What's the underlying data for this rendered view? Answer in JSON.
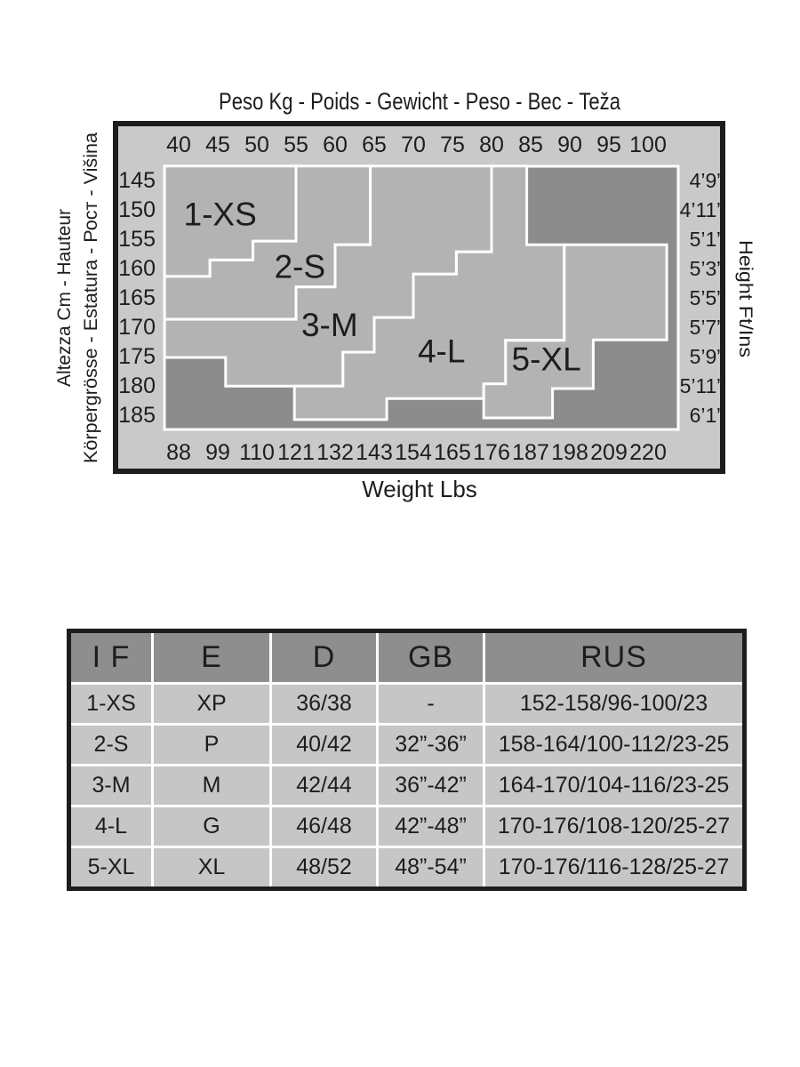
{
  "colors": {
    "band": "#c9c9c9",
    "region_fill": "#b3b3b3",
    "dark_fill": "#8c8c8c",
    "separator_line": "#ffffff",
    "ink": "#1d1d1d",
    "table_header_bg": "#8e8e8e",
    "table_row_bg": "#c6c6c6"
  },
  "chart": {
    "title": "Peso Kg - Poids - Gewicht - Peso - Вес - Teža",
    "left_axis_label_line1": "Altezza Cm - Hauteur",
    "left_axis_label_line2": "Körpergrösse - Estatura - Рост - Višina",
    "right_axis_label": "Height Ft/Ins",
    "bottom_axis_label": "Weight Lbs"
  },
  "chart_data": {
    "type": "area",
    "title": "Peso Kg - Poids - Gewicht - Peso - Вес - Teža",
    "x_axis": {
      "label": "Weight",
      "kg_ticks": [
        40,
        45,
        50,
        55,
        60,
        65,
        70,
        75,
        80,
        85,
        90,
        95,
        100
      ],
      "lbs_ticks": [
        88,
        99,
        110,
        121,
        132,
        143,
        154,
        165,
        176,
        187,
        198,
        209,
        220
      ],
      "kg_range_shown": [
        38.2,
        103.9
      ]
    },
    "y_axis": {
      "label": "Height",
      "cm_ticks": [
        145,
        150,
        155,
        160,
        165,
        170,
        175,
        180,
        185
      ],
      "ftin_ticks": [
        "4’9”",
        "4’11”",
        "5’1”",
        "5’3”",
        "5’5”",
        "5’7”",
        "5’9”",
        "5’11”",
        "6’1”"
      ],
      "cm_range_shown": [
        142.7,
        187.6
      ]
    },
    "legend_note": "Stepped light-grey polygons are size zones; darker grey background means outside size range",
    "regions": [
      {
        "size": "1-XS",
        "label_at": [
          45.3,
          150.8
        ],
        "polygon_kg_cm": [
          [
            38.2,
            142.7
          ],
          [
            55,
            142.7
          ],
          [
            55,
            155.5
          ],
          [
            49.5,
            155.5
          ],
          [
            49.5,
            158.7
          ],
          [
            44,
            158.7
          ],
          [
            44,
            161.5
          ],
          [
            38.2,
            161.5
          ]
        ]
      },
      {
        "size": "2-S",
        "label_at": [
          55.5,
          159.8
        ],
        "polygon_kg_cm": [
          [
            55,
            142.7
          ],
          [
            64.5,
            142.7
          ],
          [
            64.5,
            156.1
          ],
          [
            60,
            156.1
          ],
          [
            60,
            163.3
          ],
          [
            55,
            163.3
          ],
          [
            55,
            168.8
          ],
          [
            38.2,
            168.8
          ],
          [
            38.2,
            161.5
          ],
          [
            44,
            161.5
          ],
          [
            44,
            158.7
          ],
          [
            49.5,
            158.7
          ],
          [
            49.5,
            155.5
          ],
          [
            55,
            155.5
          ]
        ]
      },
      {
        "size": "3-M",
        "label_at": [
          59.3,
          169.7
        ],
        "polygon_kg_cm": [
          [
            64.5,
            142.7
          ],
          [
            80,
            142.7
          ],
          [
            80,
            157.3
          ],
          [
            75.5,
            157.3
          ],
          [
            75.5,
            161.1
          ],
          [
            70,
            161.1
          ],
          [
            70,
            168.5
          ],
          [
            65,
            168.5
          ],
          [
            65,
            174.4
          ],
          [
            61,
            174.4
          ],
          [
            61,
            180.2
          ],
          [
            46,
            180.2
          ],
          [
            46,
            175.3
          ],
          [
            38.2,
            175.3
          ],
          [
            38.2,
            168.8
          ],
          [
            55,
            168.8
          ],
          [
            55,
            163.3
          ],
          [
            60,
            163.3
          ],
          [
            60,
            156.1
          ],
          [
            64.5,
            156.1
          ]
        ]
      },
      {
        "size": "4-L",
        "label_at": [
          73.6,
          174.2
        ],
        "polygon_kg_cm": [
          [
            80,
            142.7
          ],
          [
            84.5,
            142.7
          ],
          [
            84.5,
            156.1
          ],
          [
            89.3,
            156.1
          ],
          [
            89.3,
            172.4
          ],
          [
            81.8,
            172.4
          ],
          [
            81.8,
            179.8
          ],
          [
            79,
            179.8
          ],
          [
            79,
            182.3
          ],
          [
            66.6,
            182.3
          ],
          [
            66.6,
            185.9
          ],
          [
            54.8,
            185.9
          ],
          [
            54.8,
            180.2
          ],
          [
            61,
            180.2
          ],
          [
            61,
            174.4
          ],
          [
            65,
            174.4
          ],
          [
            65,
            168.5
          ],
          [
            70,
            168.5
          ],
          [
            70,
            161.1
          ],
          [
            75.5,
            161.1
          ],
          [
            75.5,
            157.3
          ],
          [
            80,
            157.3
          ]
        ]
      },
      {
        "size": "5-XL",
        "label_at": [
          87.0,
          175.5
        ],
        "polygon_kg_cm": [
          [
            89.3,
            156.1
          ],
          [
            102.4,
            156.1
          ],
          [
            102.4,
            172.3
          ],
          [
            93,
            172.3
          ],
          [
            93,
            180.6
          ],
          [
            87.8,
            180.6
          ],
          [
            87.8,
            185.6
          ],
          [
            79,
            185.6
          ],
          [
            79,
            179.8
          ],
          [
            81.8,
            179.8
          ],
          [
            81.8,
            172.4
          ],
          [
            89.3,
            172.4
          ]
        ]
      }
    ]
  },
  "table": {
    "headers": [
      "I F",
      "E",
      "D",
      "GB",
      "RUS"
    ],
    "rows": [
      [
        "1-XS",
        "XP",
        "36/38",
        "-",
        "152-158/96-100/23"
      ],
      [
        "2-S",
        "P",
        "40/42",
        "32”-36”",
        "158-164/100-112/23-25"
      ],
      [
        "3-M",
        "M",
        "42/44",
        "36”-42”",
        "164-170/104-116/23-25"
      ],
      [
        "4-L",
        "G",
        "46/48",
        "42”-48”",
        "170-176/108-120/25-27"
      ],
      [
        "5-XL",
        "XL",
        "48/52",
        "48”-54”",
        "170-176/116-128/25-27"
      ]
    ]
  }
}
